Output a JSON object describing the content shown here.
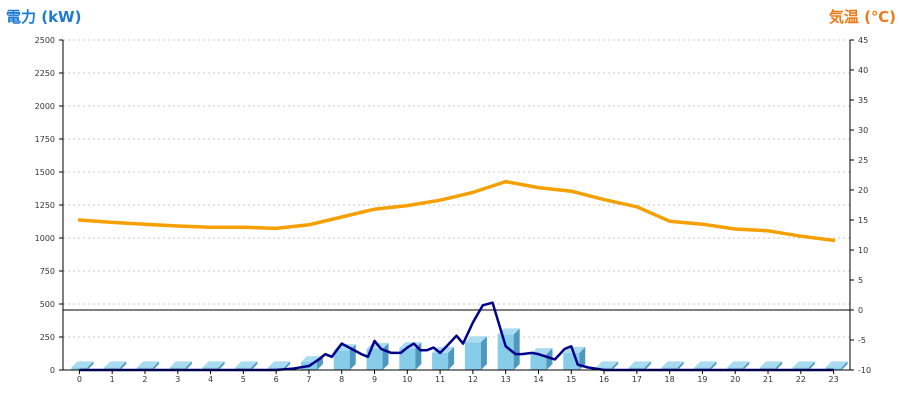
{
  "chart_data": {
    "type": "bar+line",
    "y_left_label": "電力 (kW)",
    "y_right_label": "気温 (℃)",
    "left_color": "#1e7bd4",
    "right_color": "#f07a17",
    "x_categories": [
      "0",
      "1",
      "2",
      "3",
      "4",
      "5",
      "6",
      "7",
      "8",
      "9",
      "10",
      "11",
      "12",
      "13",
      "14",
      "15",
      "16",
      "17",
      "18",
      "19",
      "20",
      "21",
      "22",
      "23"
    ],
    "ylim_left": [
      0,
      2500
    ],
    "y_ticks_left": [
      "0",
      "250",
      "500",
      "750",
      "1000",
      "1250",
      "1500",
      "1750",
      "2000",
      "2250",
      "2500"
    ],
    "ylim_right": [
      -10,
      45
    ],
    "y_ticks_right": [
      "-10",
      "-5",
      "0",
      "5",
      "10",
      "15",
      "20",
      "25",
      "30",
      "35",
      "40",
      "45"
    ],
    "grid": "dashed horizontal",
    "reference_line_right_value": 0,
    "series": [
      {
        "type": "bar",
        "color": "#87cce8",
        "values": [
          20,
          20,
          20,
          20,
          20,
          20,
          20,
          60,
          150,
          160,
          165,
          130,
          210,
          270,
          120,
          130,
          20,
          20,
          20,
          20,
          20,
          20,
          20,
          20
        ]
      },
      {
        "type": "line",
        "color": "#f5a000",
        "values": [
          15,
          14.6,
          14.3,
          14,
          13.8,
          13.8,
          13.6,
          14.2,
          15.5,
          16.8,
          17.4,
          18.3,
          19.6,
          21.4,
          20.4,
          19.8,
          18.4,
          17.2,
          14.8,
          14.3,
          13.5,
          13.2,
          12.3,
          11.6
        ]
      },
      {
        "type": "line",
        "color": "#00008b",
        "points": [
          [
            0,
            0
          ],
          [
            1,
            0
          ],
          [
            2,
            0
          ],
          [
            3,
            0
          ],
          [
            4,
            0
          ],
          [
            5,
            0
          ],
          [
            6,
            0
          ],
          [
            6.5,
            10
          ],
          [
            7,
            30
          ],
          [
            7.3,
            80
          ],
          [
            7.5,
            120
          ],
          [
            7.7,
            100
          ],
          [
            8,
            200
          ],
          [
            8.3,
            160
          ],
          [
            8.6,
            120
          ],
          [
            8.8,
            100
          ],
          [
            9,
            220
          ],
          [
            9.2,
            160
          ],
          [
            9.5,
            130
          ],
          [
            9.8,
            130
          ],
          [
            10,
            170
          ],
          [
            10.2,
            200
          ],
          [
            10.4,
            150
          ],
          [
            10.6,
            150
          ],
          [
            10.8,
            170
          ],
          [
            11,
            130
          ],
          [
            11.2,
            180
          ],
          [
            11.5,
            260
          ],
          [
            11.7,
            200
          ],
          [
            12,
            360
          ],
          [
            12.3,
            490
          ],
          [
            12.6,
            510
          ],
          [
            13,
            180
          ],
          [
            13.3,
            120
          ],
          [
            13.5,
            120
          ],
          [
            13.8,
            130
          ],
          [
            14,
            120
          ],
          [
            14.5,
            80
          ],
          [
            14.8,
            160
          ],
          [
            15,
            180
          ],
          [
            15.2,
            40
          ],
          [
            15.5,
            20
          ],
          [
            16,
            0
          ],
          [
            17,
            0
          ],
          [
            18,
            0
          ],
          [
            19,
            0
          ],
          [
            20,
            0
          ],
          [
            21,
            0
          ],
          [
            22,
            0
          ],
          [
            23,
            0
          ]
        ]
      }
    ]
  }
}
